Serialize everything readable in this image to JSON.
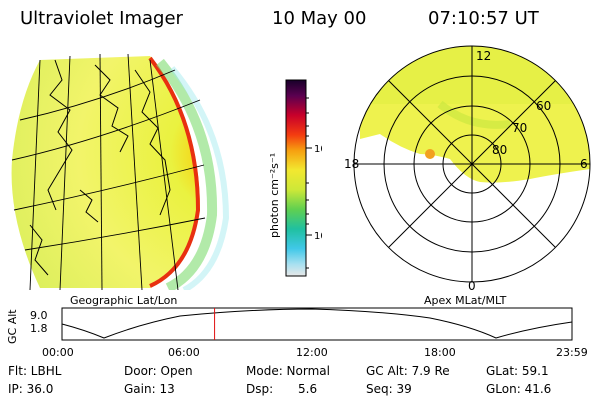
{
  "header": {
    "instrument": "Ultraviolet Imager",
    "date": "10 May 00",
    "time": "07:10:57 UT"
  },
  "panels": {
    "geo_label": "Geographic Lat/Lon",
    "apex_label": "Apex  MLat/MLT"
  },
  "colorbar": {
    "unit_label": "photon cm⁻²s⁻¹",
    "ticks": [
      "100",
      "10"
    ]
  },
  "polar": {
    "mlt_labels": [
      "12",
      "18",
      "6",
      "0"
    ],
    "lat_labels": [
      "60",
      "70",
      "80"
    ]
  },
  "altitude": {
    "axis_label": "GC Alt",
    "y_ticks": [
      "9.0",
      "1.8"
    ],
    "x_ticks": [
      "00:00",
      "06:00",
      "12:00",
      "18:00",
      "23:59"
    ],
    "marker_time_hours": 7.18
  },
  "info": {
    "filter": "Flt: LBHL",
    "door": "Door: Open",
    "mode": "Mode: Normal",
    "gc_alt": "GC Alt: 7.9 Re",
    "glat": "GLat:  59.1",
    "ip": "IP: 36.0",
    "gain": "Gain: 13",
    "dsp_label": "Dsp:",
    "dsp_value": "5.6",
    "seq": "Seq: 39",
    "glon": "GLon:  41.6"
  }
}
